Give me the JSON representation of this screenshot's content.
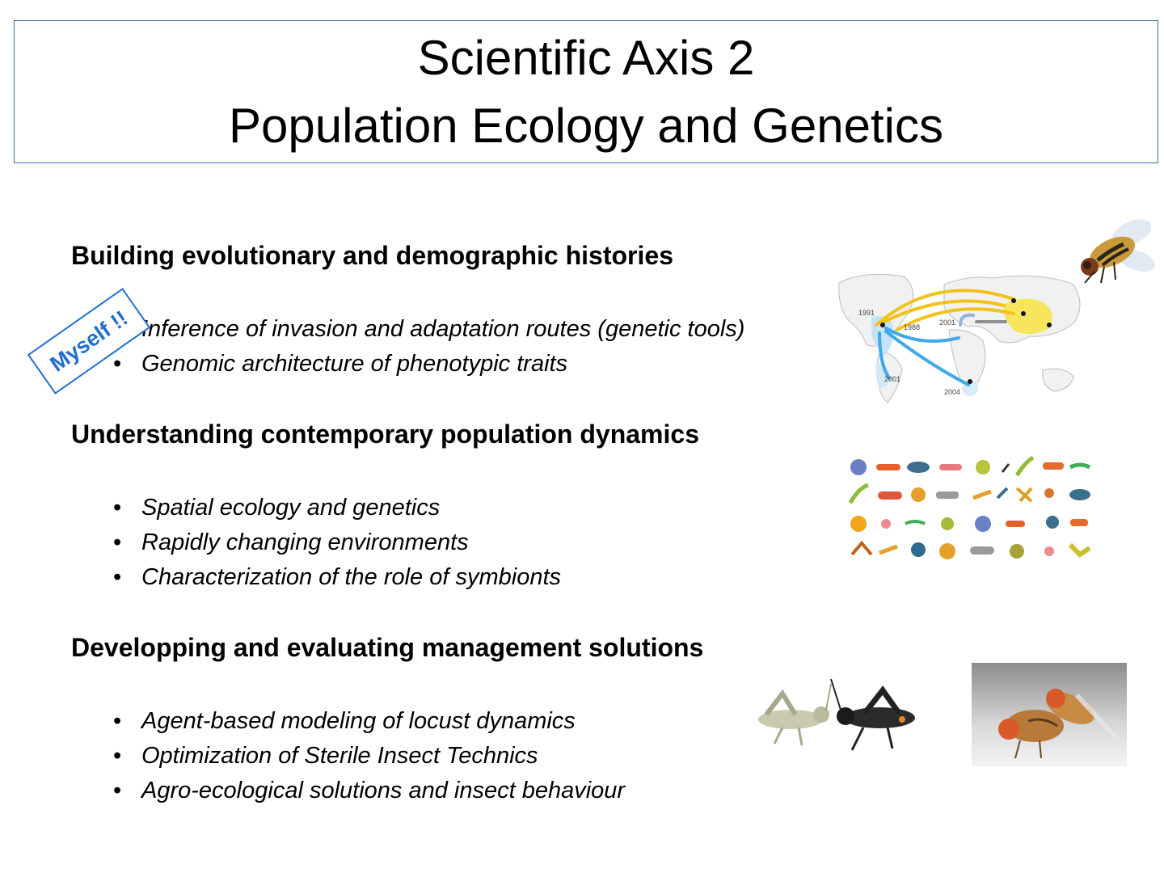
{
  "title": {
    "line1": "Scientific Axis 2",
    "line2": "Population Ecology and Genetics"
  },
  "stamp": "Myself !!",
  "sections": [
    {
      "heading": "Building evolutionary and demographic histories",
      "items": [
        "Inference of invasion and adaptation routes (genetic tools)",
        "Genomic architecture of phenotypic traits"
      ]
    },
    {
      "heading": "Understanding contemporary population dynamics",
      "items": [
        "Spatial ecology and genetics",
        "Rapidly changing environments",
        "Characterization of the role of symbionts"
      ]
    },
    {
      "heading": "Developping and evaluating management solutions",
      "items": [
        "Agent-based modeling of locust dynamics",
        "Optimization of Sterile Insect Technics",
        "Agro-ecological solutions and insect behaviour"
      ]
    }
  ],
  "map": {
    "years": [
      "1991",
      "1988",
      "2001",
      "2001",
      "2004"
    ]
  },
  "colors": {
    "title_border": "#41719c",
    "stamp": "#1f6fd1",
    "route_yellow": "#f2c21b",
    "route_blue": "#3fa9e8"
  }
}
